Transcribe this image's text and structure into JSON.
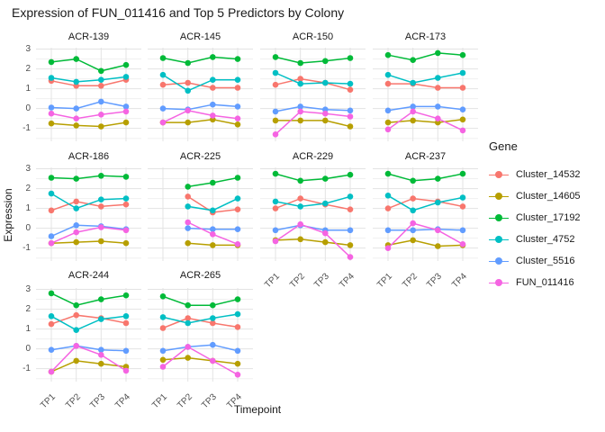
{
  "title": "Expression of FUN_011416 and Top 5 Predictors by Colony",
  "chart_data": {
    "type": "line",
    "facet_by": "Colony",
    "x": [
      "TP1",
      "TP2",
      "TP3",
      "TP4"
    ],
    "xlabel": "Timepoint",
    "ylabel": "Expression",
    "y_ticks": [
      3,
      2,
      1,
      0,
      -1
    ],
    "y_minor_ticks": [
      2.5,
      1.5,
      0.5,
      -0.5,
      -1.5
    ],
    "ylim": [
      -1.65,
      3.07
    ],
    "grid": "on",
    "legend_title": "Gene",
    "legend_position": "right",
    "genes": [
      {
        "id": "Cluster_14532",
        "color": "#F8766D"
      },
      {
        "id": "Cluster_14605",
        "color": "#B79F00"
      },
      {
        "id": "Cluster_17192",
        "color": "#00BA38"
      },
      {
        "id": "Cluster_4752",
        "color": "#00BFC4"
      },
      {
        "id": "Cluster_5516",
        "color": "#619CFF"
      },
      {
        "id": "FUN_011416",
        "color": "#F564E2"
      }
    ],
    "facets": [
      {
        "name": "ACR-139",
        "series": [
          [
            1.4,
            1.15,
            1.15,
            1.45
          ],
          [
            -0.75,
            -0.85,
            -0.9,
            -0.7
          ],
          [
            2.35,
            2.5,
            1.9,
            2.2
          ],
          [
            1.55,
            1.35,
            1.45,
            1.6
          ],
          [
            0.05,
            0.0,
            0.35,
            0.1
          ],
          [
            -0.25,
            -0.5,
            -0.3,
            -0.15
          ]
        ]
      },
      {
        "name": "ACR-145",
        "series": [
          [
            1.2,
            1.3,
            1.05,
            1.05
          ],
          [
            -0.7,
            -0.7,
            -0.55,
            -0.8
          ],
          [
            2.55,
            2.3,
            2.6,
            2.5
          ],
          [
            1.7,
            0.9,
            1.45,
            1.45
          ],
          [
            0.0,
            -0.05,
            0.2,
            0.1
          ],
          [
            -0.7,
            -0.1,
            -0.35,
            -0.5
          ]
        ]
      },
      {
        "name": "ACR-150",
        "series": [
          [
            1.2,
            1.5,
            1.3,
            0.95
          ],
          [
            -0.6,
            -0.6,
            -0.6,
            -0.9
          ],
          [
            2.6,
            2.3,
            2.4,
            2.55
          ],
          [
            1.8,
            1.25,
            1.3,
            1.25
          ],
          [
            -0.15,
            0.1,
            -0.05,
            -0.1
          ],
          [
            -1.3,
            -0.15,
            -0.25,
            -0.4
          ]
        ]
      },
      {
        "name": "ACR-173",
        "series": [
          [
            1.25,
            1.25,
            1.05,
            1.05
          ],
          [
            -0.7,
            -0.6,
            -0.7,
            -0.55
          ],
          [
            2.7,
            2.45,
            2.8,
            2.7
          ],
          [
            1.7,
            1.3,
            1.55,
            1.8
          ],
          [
            -0.1,
            0.1,
            0.1,
            -0.05
          ],
          [
            -1.05,
            -0.15,
            -0.5,
            -1.1
          ]
        ]
      },
      {
        "name": "ACR-186",
        "series": [
          [
            0.9,
            1.35,
            1.1,
            1.2
          ],
          [
            -0.75,
            -0.7,
            -0.65,
            -0.75
          ],
          [
            2.55,
            2.5,
            2.65,
            2.6
          ],
          [
            1.75,
            1.0,
            1.45,
            1.5
          ],
          [
            -0.4,
            0.15,
            0.1,
            -0.05
          ],
          [
            -0.75,
            -0.2,
            0.05,
            -0.1
          ]
        ]
      },
      {
        "name": "ACR-225",
        "series": [
          [
            null,
            1.6,
            0.8,
            0.95
          ],
          [
            null,
            -0.75,
            -0.85,
            -0.85
          ],
          [
            null,
            2.1,
            2.3,
            2.55
          ],
          [
            null,
            1.1,
            0.9,
            1.5
          ],
          [
            null,
            0.0,
            -0.05,
            -0.05
          ],
          [
            null,
            0.3,
            -0.3,
            -0.8
          ]
        ]
      },
      {
        "name": "ACR-229",
        "series": [
          [
            1.0,
            1.5,
            1.2,
            0.95
          ],
          [
            -0.6,
            -0.55,
            -0.7,
            -0.85
          ],
          [
            2.75,
            2.4,
            2.5,
            2.7
          ],
          [
            1.35,
            1.1,
            1.25,
            1.6
          ],
          [
            -0.1,
            0.15,
            -0.1,
            -0.1
          ],
          [
            -0.65,
            0.2,
            -0.25,
            -1.45
          ]
        ]
      },
      {
        "name": "ACR-237",
        "series": [
          [
            1.0,
            1.5,
            1.35,
            1.1
          ],
          [
            -0.85,
            -0.6,
            -0.9,
            -0.85
          ],
          [
            2.75,
            2.4,
            2.5,
            2.75
          ],
          [
            1.65,
            0.9,
            1.3,
            1.55
          ],
          [
            -0.1,
            -0.1,
            -0.05,
            -0.1
          ],
          [
            -1.0,
            0.25,
            -0.1,
            -0.8
          ]
        ]
      },
      {
        "name": "ACR-244",
        "series": [
          [
            1.25,
            1.7,
            1.55,
            1.3
          ],
          [
            -1.15,
            -0.6,
            -0.75,
            -0.9
          ],
          [
            2.8,
            2.2,
            2.5,
            2.7
          ],
          [
            1.65,
            0.95,
            1.5,
            1.65
          ],
          [
            -0.05,
            0.15,
            -0.05,
            -0.1
          ],
          [
            -1.15,
            0.15,
            -0.3,
            -1.1
          ]
        ]
      },
      {
        "name": "ACR-265",
        "series": [
          [
            1.05,
            1.55,
            1.3,
            1.1
          ],
          [
            -0.55,
            -0.45,
            -0.6,
            -0.75
          ],
          [
            2.65,
            2.2,
            2.2,
            2.5
          ],
          [
            1.6,
            1.3,
            1.55,
            1.75
          ],
          [
            -0.1,
            0.1,
            0.2,
            -0.1
          ],
          [
            -0.9,
            0.1,
            -0.6,
            -1.3
          ]
        ]
      }
    ]
  },
  "legend": {
    "title": "Gene",
    "items": [
      {
        "label": "Cluster_14532",
        "color": "#F8766D"
      },
      {
        "label": "Cluster_14605",
        "color": "#B79F00"
      },
      {
        "label": "Cluster_17192",
        "color": "#00BA38"
      },
      {
        "label": "Cluster_4752",
        "color": "#00BFC4"
      },
      {
        "label": "Cluster_5516",
        "color": "#619CFF"
      },
      {
        "label": "FUN_011416",
        "color": "#F564E2"
      }
    ]
  },
  "colors": {
    "grid_major": "#e3e3e3",
    "grid_minor": "#f0f0f0",
    "tick_text": "#4d4d4d"
  }
}
